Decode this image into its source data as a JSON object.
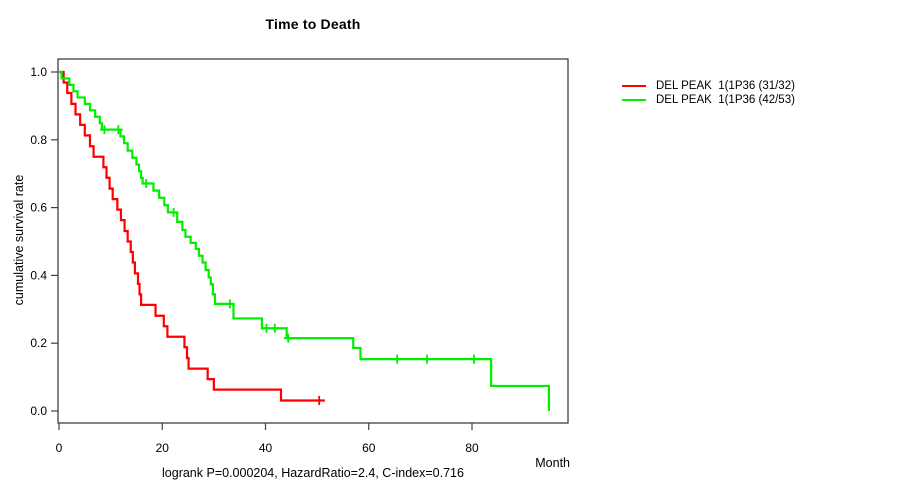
{
  "chart_data": {
    "type": "line",
    "subtype": "kaplan-meier-step-survival",
    "title": "Time to Death",
    "xlabel": "Month",
    "ylabel": "cumulative survival rate",
    "annotation": "logrank P=0.000204, HazardRatio=2.4, C-index=0.716",
    "x_ticks": [
      0,
      20,
      40,
      60,
      80
    ],
    "y_ticks": [
      "1.0",
      "0.8",
      "0.6",
      "0.4",
      "0.2",
      "0.0"
    ],
    "xlim": [
      0,
      98.5
    ],
    "ylim": [
      0,
      1.0
    ],
    "grid": false,
    "legend_position": "right-outside",
    "series": [
      {
        "name": "DEL PEAK  1(1P36 (31/32)",
        "color": "#ff0000",
        "events": "31/32",
        "steps": [
          [
            0,
            1.0
          ],
          [
            0.9,
            0.969
          ],
          [
            1.6,
            0.938
          ],
          [
            2.4,
            0.906
          ],
          [
            3.2,
            0.875
          ],
          [
            4.1,
            0.844
          ],
          [
            5,
            0.813
          ],
          [
            6,
            0.781
          ],
          [
            6.7,
            0.75
          ],
          [
            8.6,
            0.719
          ],
          [
            9.2,
            0.688
          ],
          [
            9.8,
            0.656
          ],
          [
            10.4,
            0.625
          ],
          [
            11.3,
            0.594
          ],
          [
            12,
            0.563
          ],
          [
            12.7,
            0.531
          ],
          [
            13.3,
            0.5
          ],
          [
            13.9,
            0.469
          ],
          [
            14.3,
            0.438
          ],
          [
            14.7,
            0.406
          ],
          [
            15.3,
            0.375
          ],
          [
            15.6,
            0.344
          ],
          [
            15.9,
            0.313
          ],
          [
            18.7,
            0.281
          ],
          [
            20.3,
            0.25
          ],
          [
            21,
            0.219
          ],
          [
            24.3,
            0.188
          ],
          [
            24.8,
            0.156
          ],
          [
            25.1,
            0.125
          ],
          [
            28.8,
            0.094
          ],
          [
            30,
            0.063
          ],
          [
            43,
            0.031
          ]
        ],
        "censor_times": [
          50.4
        ],
        "end_time": 51.5
      },
      {
        "name": "DEL PEAK  1(1P36 (42/53)",
        "color": "#00ee00",
        "events": "42/53",
        "steps": [
          [
            0,
            1.0
          ],
          [
            0.5,
            0.981
          ],
          [
            2,
            0.962
          ],
          [
            2.8,
            0.943
          ],
          [
            3.6,
            0.925
          ],
          [
            5,
            0.906
          ],
          [
            6,
            0.887
          ],
          [
            7,
            0.868
          ],
          [
            7.9,
            0.849
          ],
          [
            8.3,
            0.83
          ],
          [
            11.9,
            0.81
          ],
          [
            12.6,
            0.79
          ],
          [
            13.3,
            0.768
          ],
          [
            14.2,
            0.747
          ],
          [
            15,
            0.727
          ],
          [
            15.5,
            0.707
          ],
          [
            15.9,
            0.687
          ],
          [
            16.2,
            0.671
          ],
          [
            18.3,
            0.65
          ],
          [
            19.4,
            0.629
          ],
          [
            20.4,
            0.607
          ],
          [
            21.1,
            0.586
          ],
          [
            22.9,
            0.558
          ],
          [
            23.9,
            0.534
          ],
          [
            24.5,
            0.514
          ],
          [
            25.5,
            0.496
          ],
          [
            26.5,
            0.478
          ],
          [
            27.1,
            0.458
          ],
          [
            27.8,
            0.438
          ],
          [
            28.4,
            0.416
          ],
          [
            29,
            0.394
          ],
          [
            29.4,
            0.374
          ],
          [
            29.8,
            0.344
          ],
          [
            30.2,
            0.316
          ],
          [
            33.8,
            0.273
          ],
          [
            39.3,
            0.244
          ],
          [
            44.1,
            0.215
          ],
          [
            57,
            0.186
          ],
          [
            58.4,
            0.153
          ],
          [
            83.7,
            0.074
          ],
          [
            94.9,
            0
          ]
        ],
        "censor_times": [
          8.8,
          11.5,
          16.9,
          22.2,
          33.1,
          40.2,
          41.8,
          44.4,
          65.5,
          71.3,
          80.4
        ],
        "end_time": 94.9
      }
    ],
    "axis_color": "#404040"
  }
}
